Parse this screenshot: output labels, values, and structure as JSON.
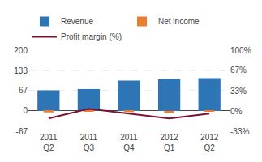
{
  "chart_data": {
    "type": "bar",
    "categories": [
      "2011\nQ2",
      "2011\nQ3",
      "2011\nQ4",
      "2012\nQ1",
      "2012\nQ2"
    ],
    "series": [
      {
        "name": "Revenue",
        "color": "#2e75b6",
        "values": [
          68,
          72,
          100,
          105,
          108
        ]
      },
      {
        "name": "Net income",
        "color": "#ed7d31",
        "values": [
          -5,
          -2,
          -4,
          -7,
          -2
        ]
      },
      {
        "name": "Profit margin (%)",
        "type": "line",
        "color": "#7b1230",
        "axis": "y2",
        "values": [
          -12,
          4,
          -4,
          -12,
          -4
        ]
      }
    ],
    "ylim": [
      -67,
      200
    ],
    "yticks": [
      -67,
      0,
      67,
      133,
      200
    ],
    "y2lim": [
      -33,
      100
    ],
    "y2ticks": [
      {
        "value": -33,
        "label": "-33%"
      },
      {
        "value": 0,
        "label": "0%"
      },
      {
        "value": 33,
        "label": "33%"
      },
      {
        "value": 67,
        "label": "67%"
      },
      {
        "value": 100,
        "label": "100%"
      }
    ],
    "grid": true,
    "legend": "upper left"
  }
}
